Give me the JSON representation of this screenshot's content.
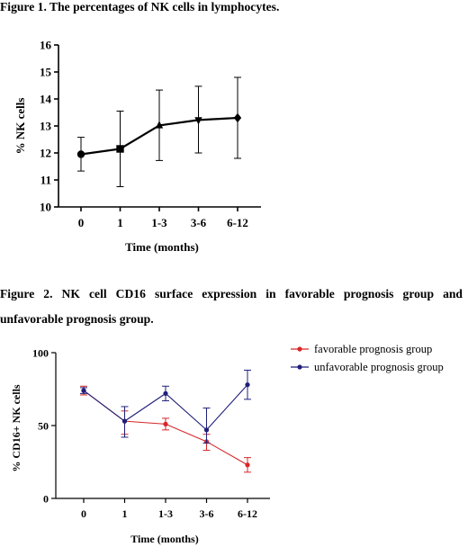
{
  "captions": {
    "figure1": "Figure 1. The percentages of NK cells in lymphocytes.",
    "figure2": "Figure 2. NK cell CD16 surface expression in favorable prognosis group and unfavorable prognosis group."
  },
  "chart_data": [
    {
      "type": "line",
      "title": "",
      "xlabel": "Time (months)",
      "ylabel": "% NK cells",
      "categories": [
        "0",
        "1",
        "1-3",
        "3-6",
        "6-12"
      ],
      "ylim": [
        10,
        16
      ],
      "yticks": [
        10,
        11,
        12,
        13,
        14,
        15,
        16
      ],
      "grid": false,
      "legend": "none",
      "series": [
        {
          "values": [
            11.95,
            12.15,
            13.02,
            13.22,
            13.3
          ],
          "error_low": [
            11.33,
            10.75,
            11.72,
            12.0,
            11.8
          ],
          "error_high": [
            12.58,
            13.55,
            14.33,
            14.47,
            14.8
          ],
          "markers": [
            "circle",
            "square",
            "triangle-up",
            "triangle-down",
            "diamond"
          ],
          "color": "#000000"
        }
      ]
    },
    {
      "type": "line",
      "title": "",
      "xlabel": "Time (months)",
      "ylabel": "% CD16+ NK cells",
      "categories": [
        "0",
        "1",
        "1-3",
        "3-6",
        "6-12"
      ],
      "ylim": [
        0,
        100
      ],
      "yticks": [
        0,
        50,
        100
      ],
      "grid": false,
      "legend": "top-right",
      "series": [
        {
          "name": "favorable prognosis group",
          "color": "#d62728",
          "values": [
            74,
            53,
            51,
            39,
            23
          ],
          "error_low": [
            71,
            44,
            47,
            33,
            18
          ],
          "error_high": [
            77,
            60,
            55,
            44,
            28
          ]
        },
        {
          "name": "unfavorable prognosis group",
          "color": "#1f1f7a",
          "values": [
            74,
            53,
            72,
            47,
            78
          ],
          "error_low": [
            72,
            42,
            67,
            38,
            68
          ],
          "error_high": [
            76,
            63,
            77,
            62,
            88
          ]
        }
      ]
    }
  ]
}
